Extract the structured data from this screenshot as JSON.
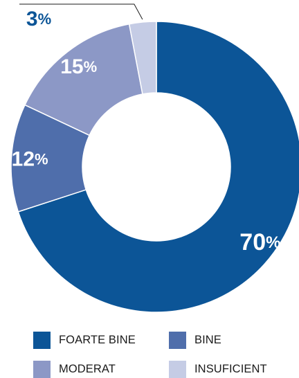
{
  "chart_data": {
    "type": "pie",
    "title": "",
    "categories": [
      "FOARTE BINE",
      "BINE",
      "MODERAT",
      "INSUFICIENT"
    ],
    "values": [
      70,
      12,
      15,
      3
    ],
    "value_labels": [
      "70",
      "12",
      "15",
      "3"
    ],
    "unit": "%",
    "colors": [
      "#0c5597",
      "#4f6eab",
      "#8c98c6",
      "#c5cce5"
    ],
    "donut": true,
    "legend_position": "bottom"
  },
  "legend": {
    "items": [
      {
        "label": "FOARTE BINE",
        "color": "#0c5597"
      },
      {
        "label": "BINE",
        "color": "#4f6eab"
      },
      {
        "label": "MODERAT",
        "color": "#8c98c6"
      },
      {
        "label": "INSUFICIENT",
        "color": "#c5cce5"
      }
    ]
  }
}
